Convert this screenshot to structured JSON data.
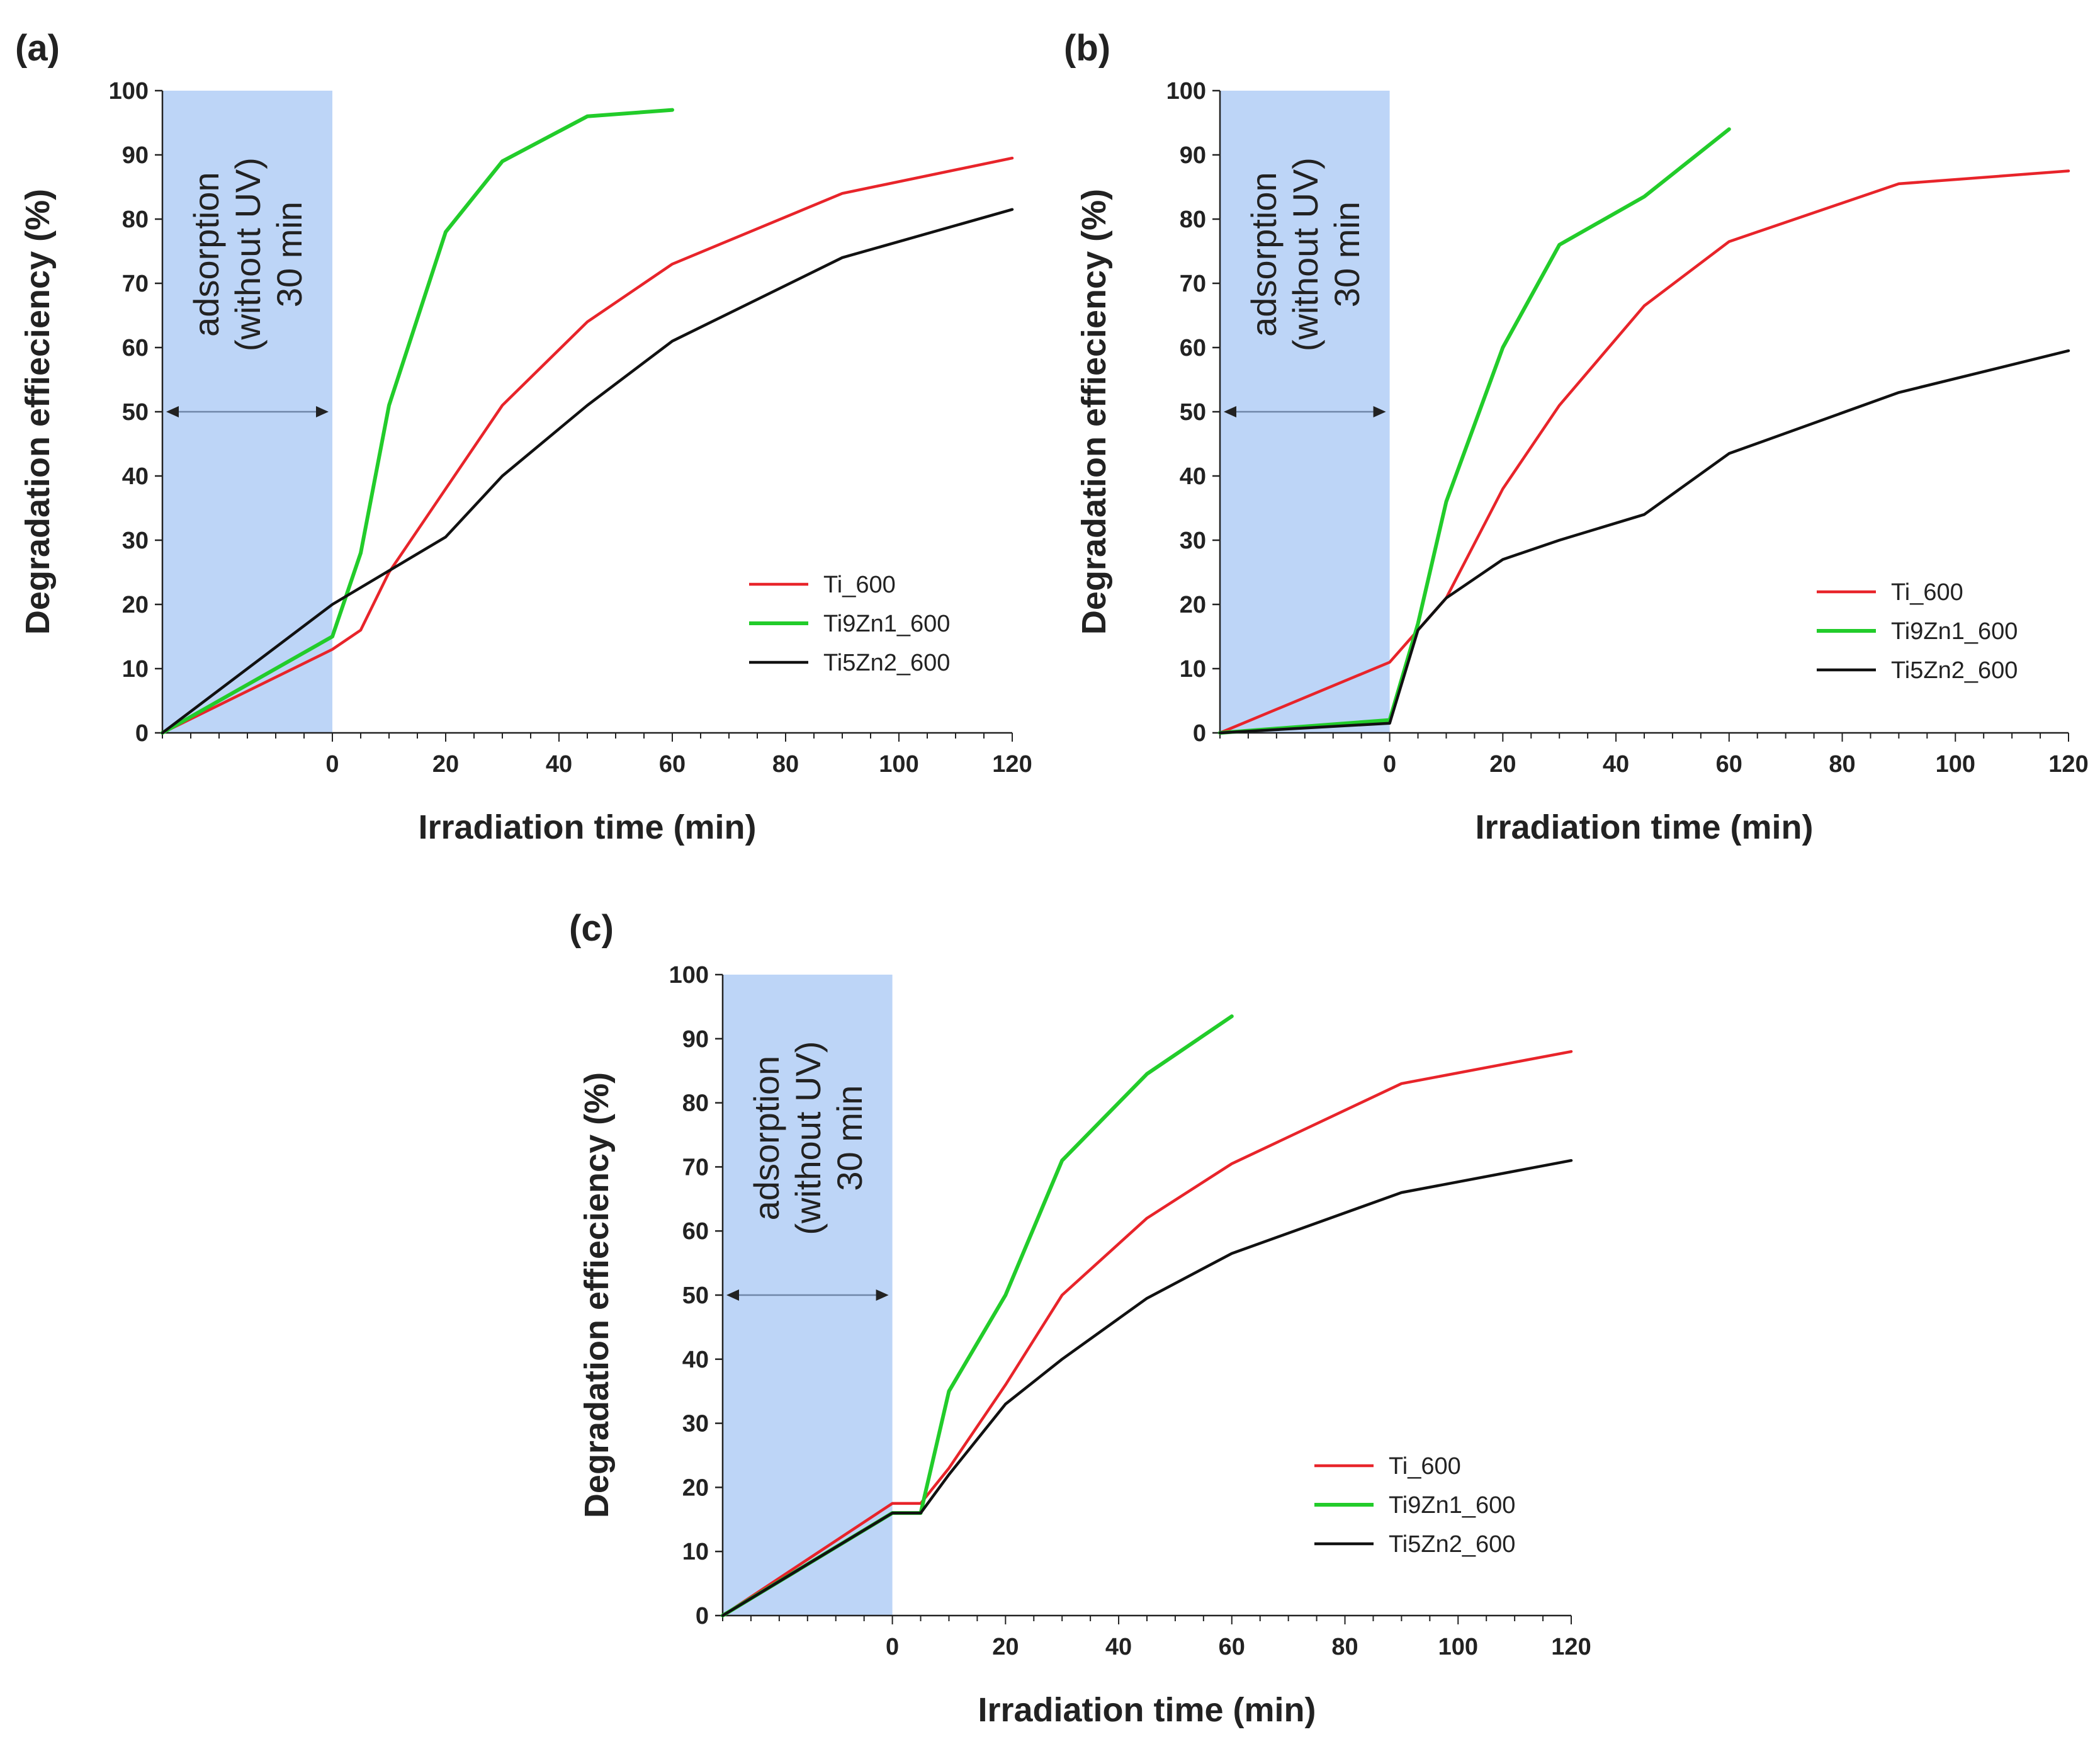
{
  "chart_data": [
    {
      "type": "line",
      "panel_label": "(a)",
      "xlabel": "Irradiation time (min)",
      "ylabel": "Degradation effieciency (%)",
      "xlim": [
        -30,
        120
      ],
      "ylim": [
        0,
        100
      ],
      "xticks": [
        0,
        20,
        40,
        60,
        80,
        100,
        120
      ],
      "yticks": [
        0,
        10,
        20,
        30,
        40,
        50,
        60,
        70,
        80,
        90,
        100
      ],
      "shaded_region": {
        "x": [
          -30,
          0
        ],
        "label_lines": [
          "adsorption",
          "(without UV)",
          "30 min"
        ],
        "arrow_y": 50
      },
      "legend_position": "lower-right",
      "series": [
        {
          "name": "Ti_600",
          "color": "#e8242a",
          "x": [
            -30,
            0,
            5,
            10,
            20,
            30,
            45,
            60,
            90,
            120
          ],
          "y": [
            0,
            13,
            16,
            25,
            38,
            51,
            64,
            73,
            84,
            89.5
          ]
        },
        {
          "name": "Ti9Zn1_600",
          "color": "#22cc2a",
          "x": [
            -30,
            0,
            5,
            10,
            20,
            30,
            45,
            60
          ],
          "y": [
            0,
            15,
            28,
            51,
            78,
            89,
            96,
            97
          ]
        },
        {
          "name": "Ti5Zn2_600",
          "color": "#111111",
          "x": [
            -30,
            0,
            20,
            30,
            45,
            60,
            90,
            120
          ],
          "y": [
            0,
            20,
            30.5,
            40,
            51,
            61,
            74,
            81.5
          ]
        }
      ]
    },
    {
      "type": "line",
      "panel_label": "(b)",
      "xlabel": "Irradiation time (min)",
      "ylabel": "Degradation effieciency (%)",
      "xlim": [
        -30,
        120
      ],
      "ylim": [
        0,
        100
      ],
      "xticks": [
        0,
        20,
        40,
        60,
        80,
        100,
        120
      ],
      "yticks": [
        0,
        10,
        20,
        30,
        40,
        50,
        60,
        70,
        80,
        90,
        100
      ],
      "shaded_region": {
        "x": [
          -30,
          0
        ],
        "label_lines": [
          "adsorption",
          "(without UV)",
          "30 min"
        ],
        "arrow_y": 50
      },
      "legend_position": "lower-right",
      "series": [
        {
          "name": "Ti_600",
          "color": "#e8242a",
          "x": [
            -30,
            0,
            10,
            20,
            30,
            45,
            60,
            90,
            120
          ],
          "y": [
            0,
            11,
            21,
            38,
            51,
            66.5,
            76.5,
            85.5,
            87.5
          ]
        },
        {
          "name": "Ti9Zn1_600",
          "color": "#22cc2a",
          "x": [
            -30,
            0,
            5,
            10,
            20,
            30,
            45,
            60
          ],
          "y": [
            0,
            2,
            17,
            36,
            60,
            76,
            83.5,
            94
          ]
        },
        {
          "name": "Ti5Zn2_600",
          "color": "#111111",
          "x": [
            -30,
            0,
            5,
            10,
            20,
            30,
            45,
            60,
            90,
            120
          ],
          "y": [
            0,
            1.5,
            16,
            21,
            27,
            30,
            34,
            43.5,
            53,
            59.5
          ]
        }
      ]
    },
    {
      "type": "line",
      "panel_label": "(c)",
      "xlabel": "Irradiation time (min)",
      "ylabel": "Degradation effieciency (%)",
      "xlim": [
        -30,
        120
      ],
      "ylim": [
        0,
        100
      ],
      "xticks": [
        0,
        20,
        40,
        60,
        80,
        100,
        120
      ],
      "yticks": [
        0,
        10,
        20,
        30,
        40,
        50,
        60,
        70,
        80,
        90,
        100
      ],
      "shaded_region": {
        "x": [
          -30,
          0
        ],
        "label_lines": [
          "adsorption",
          "(without UV)",
          "30 min"
        ],
        "arrow_y": 50
      },
      "legend_position": "lower-right",
      "series": [
        {
          "name": "Ti_600",
          "color": "#e8242a",
          "x": [
            -30,
            0,
            5,
            10,
            20,
            30,
            45,
            60,
            90,
            120
          ],
          "y": [
            0,
            17.5,
            17.5,
            23,
            36,
            50,
            62,
            70.5,
            83,
            88
          ]
        },
        {
          "name": "Ti9Zn1_600",
          "color": "#22cc2a",
          "x": [
            -30,
            0,
            5,
            10,
            20,
            30,
            45,
            60
          ],
          "y": [
            0,
            16,
            16,
            35,
            50,
            71,
            84.5,
            93.5
          ]
        },
        {
          "name": "Ti5Zn2_600",
          "color": "#111111",
          "x": [
            -30,
            0,
            5,
            10,
            20,
            30,
            45,
            60,
            90,
            120
          ],
          "y": [
            0,
            16,
            16,
            22,
            33,
            40,
            49.5,
            56.5,
            66,
            71
          ]
        }
      ]
    }
  ]
}
